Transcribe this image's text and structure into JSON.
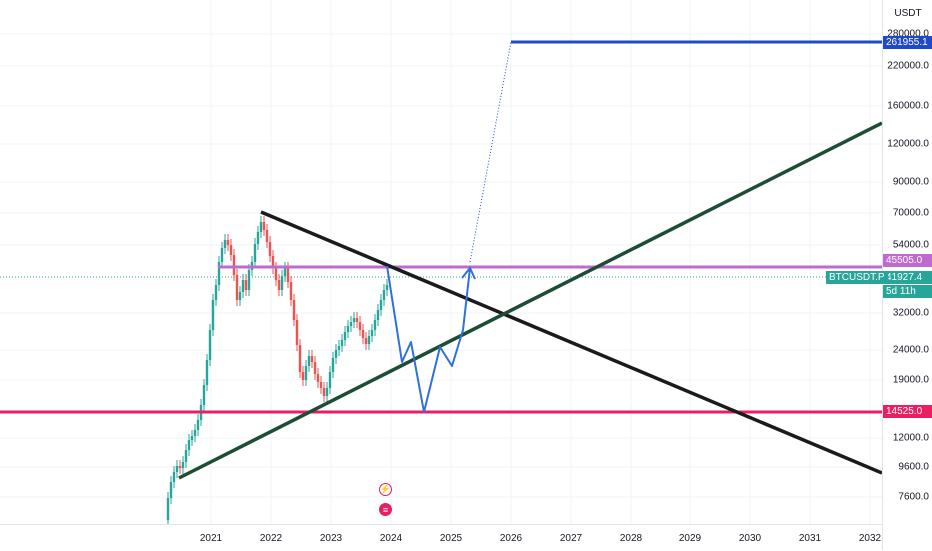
{
  "axis": {
    "unit": "USDT",
    "price_ticks": [
      "280000.0",
      "220000.0",
      "160000.0",
      "120000.0",
      "90000.0",
      "70000.0",
      "54000.0",
      "45505.0",
      "41927.4",
      "32000.0",
      "24000.0",
      "19000.0",
      "14525.0",
      "12000.0",
      "9600.0",
      "7600.0"
    ],
    "time_ticks": [
      "2021",
      "2022",
      "2023",
      "2024",
      "2025",
      "2026",
      "2027",
      "2028",
      "2029",
      "2030",
      "2031",
      "2032"
    ]
  },
  "price_labels": {
    "target": "261955.1",
    "resistance": "45505.0",
    "support": "14525.0",
    "current": "41927.4"
  },
  "symbol": {
    "name": "BTCUSDT.P",
    "countdown": "5d 11h"
  },
  "colors": {
    "target_line": "#1e49c8",
    "resistance_line": "#c06ad0",
    "support_line": "#e91e63",
    "descending_trend": "#1b1b1b",
    "ascending_trend": "#1e4d35",
    "projection": "#2f6fe0",
    "candle_up": "#26a69a",
    "candle_down": "#ef5350"
  },
  "events": {
    "icons": [
      "lightning-event-icon",
      "us-flag-event-icon"
    ]
  }
}
